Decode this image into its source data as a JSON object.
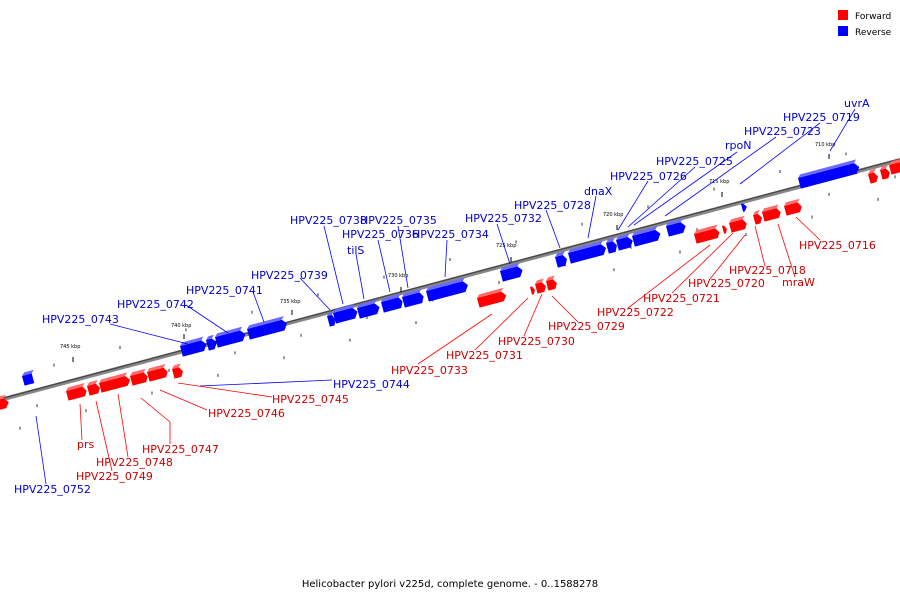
{
  "caption": "Helicobacter pylori v225d, complete genome. - 0..1588278",
  "legend": [
    {
      "label": "Forward",
      "color": "#ff0000"
    },
    {
      "label": "Reverse",
      "color": "#0000ff"
    }
  ],
  "colors": {
    "forward": "#ff0000",
    "forward_top": "#ff6b6b",
    "reverse": "#0000ff",
    "reverse_top": "#6b6bff",
    "fwd_label": "#cc0000",
    "rev_label": "#0000cc"
  },
  "ticks": [
    "745 kbp",
    "740 kbp",
    "735 kbp",
    "730 kbp",
    "725 kbp",
    "720 kbp",
    "715 kbp",
    "710 kbp"
  ],
  "reverse_labels": [
    "HPV225_0743",
    "HPV225_0742",
    "HPV225_0741",
    "HPV225_0739",
    "HPV225_0738",
    "tilS",
    "HPV225_0736",
    "HPV225_0735",
    "HPV225_0734",
    "HPV225_0732",
    "HPV225_0728",
    "dnaX",
    "HPV225_0726",
    "HPV225_0725",
    "rpoN",
    "HPV225_0723",
    "HPV225_0719",
    "uvrA",
    "HPV225_0744",
    "HPV225_0752"
  ],
  "forward_labels": [
    "HPV225_0745",
    "HPV225_0746",
    "HPV225_0747",
    "prs",
    "HPV225_0748",
    "HPV225_0749",
    "HPV225_0733",
    "HPV225_0731",
    "HPV225_0730",
    "HPV225_0729",
    "HPV225_0722",
    "HPV225_0721",
    "HPV225_0720",
    "HPV225_0718",
    "mraW",
    "HPV225_0716"
  ]
}
